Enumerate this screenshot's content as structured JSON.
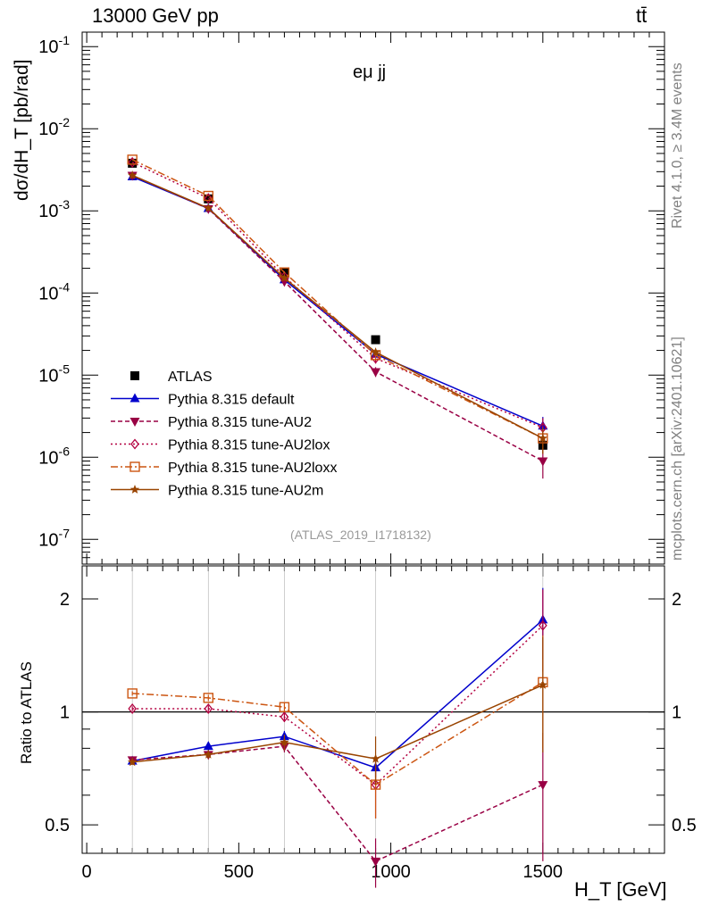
{
  "header": {
    "energy": "13000 GeV pp",
    "process": "tt̄",
    "channel": "eμ jj",
    "analysis": "(ATLAS_2019_I1718132)"
  },
  "side": {
    "rivet": "Rivet 4.1.0, ≥ 3.4M events",
    "mcplots": "mcplots.cern.ch [arXiv:2401.10621]"
  },
  "colors": {
    "data": "#000000",
    "default": "#0000cc",
    "au2": "#990044",
    "au2lox": "#b30040",
    "au2loxx": "#cc5511",
    "au2m": "#994400",
    "guide": "#bbbbbb"
  },
  "chart_data": [
    {
      "type": "line",
      "title": "eμ jj",
      "xlabel": "H_T [GeV]",
      "ylabel": "dσ/dH_T [pb/rad]",
      "yscale": "log",
      "xlim": [
        -15,
        1900
      ],
      "ylim": [
        5e-08,
        0.15
      ],
      "x_ticks": [
        "0",
        "500",
        "1000",
        "1500"
      ],
      "y_ticks": [
        "10^-7",
        "10^-6",
        "10^-5",
        "10^-4",
        "10^-3",
        "10^-2",
        "10^-1"
      ],
      "x": [
        150,
        400,
        650,
        950,
        1500
      ],
      "series": [
        {
          "name": "ATLAS",
          "values": [
            0.0038,
            0.0014,
            0.00018,
            2.7e-05,
            1.4e-06
          ],
          "errors": [
            0.0002,
            8e-05,
            1e-05,
            2e-06,
            3e-07
          ]
        },
        {
          "name": "Pythia 8.315 default",
          "values": [
            0.0026,
            0.00107,
            0.000145,
            1.8e-05,
            2.4e-06
          ],
          "errors": [
            4e-05,
            2e-05,
            4e-06,
            1e-06,
            7e-07
          ]
        },
        {
          "name": "Pythia 8.315 tune-AU2",
          "values": [
            0.0027,
            0.00106,
            0.000138,
            1.1e-05,
            9e-07
          ],
          "errors": [
            4e-05,
            2e-05,
            4e-06,
            1.5e-06,
            3.5e-07
          ]
        },
        {
          "name": "Pythia 8.315 tune-AU2lox",
          "values": [
            0.0039,
            0.00142,
            0.000158,
            1.6e-05,
            2.3e-06
          ],
          "errors": [
            5e-05,
            2e-05,
            5e-06,
            2.2e-06,
            7e-07
          ]
        },
        {
          "name": "Pythia 8.315 tune-AU2loxx",
          "values": [
            0.0042,
            0.00152,
            0.000178,
            1.75e-05,
            1.7e-06
          ],
          "errors": [
            5e-05,
            2e-05,
            5e-06,
            2.2e-06,
            6e-07
          ]
        },
        {
          "name": "Pythia 8.315 tune-AU2m",
          "values": [
            0.0027,
            0.00108,
            0.000152,
            1.9e-05,
            1.7e-06
          ],
          "errors": [
            4e-05,
            2e-05,
            4e-06,
            1.5e-06,
            6e-07
          ]
        }
      ]
    },
    {
      "type": "line",
      "title": "",
      "xlabel": "H_T [GeV]",
      "ylabel": "Ratio to ATLAS",
      "yscale": "log",
      "xlim": [
        -15,
        1900
      ],
      "ylim": [
        0.42,
        2.45
      ],
      "x_ticks": [
        "0",
        "500",
        "1000",
        "1500"
      ],
      "y_ticks": [
        "0.5",
        "1",
        "2"
      ],
      "x": [
        150,
        400,
        650,
        950,
        1500
      ],
      "series": [
        {
          "name": "Pythia 8.315 default",
          "values": [
            0.74,
            0.81,
            0.86,
            0.71,
            1.76
          ],
          "errors": [
            0.012,
            0.02,
            0.03,
            0.04,
            0.38
          ]
        },
        {
          "name": "Pythia 8.315 tune-AU2",
          "values": [
            0.745,
            0.77,
            0.81,
            0.4,
            0.64
          ],
          "errors": [
            0.012,
            0.02,
            0.03,
            0.06,
            0.24
          ]
        },
        {
          "name": "Pythia 8.315 tune-AU2lox",
          "values": [
            1.02,
            1.02,
            0.97,
            0.64,
            1.7
          ],
          "errors": [
            0.015,
            0.02,
            0.03,
            0.12,
            0.42
          ]
        },
        {
          "name": "Pythia 8.315 tune-AU2loxx",
          "values": [
            1.12,
            1.09,
            1.03,
            0.64,
            1.2
          ],
          "errors": [
            0.015,
            0.02,
            0.03,
            0.12,
            0.4
          ]
        },
        {
          "name": "Pythia 8.315 tune-AU2m",
          "values": [
            0.735,
            0.77,
            0.83,
            0.75,
            1.18
          ],
          "errors": [
            0.012,
            0.02,
            0.04,
            0.11,
            0.4
          ]
        }
      ]
    }
  ]
}
